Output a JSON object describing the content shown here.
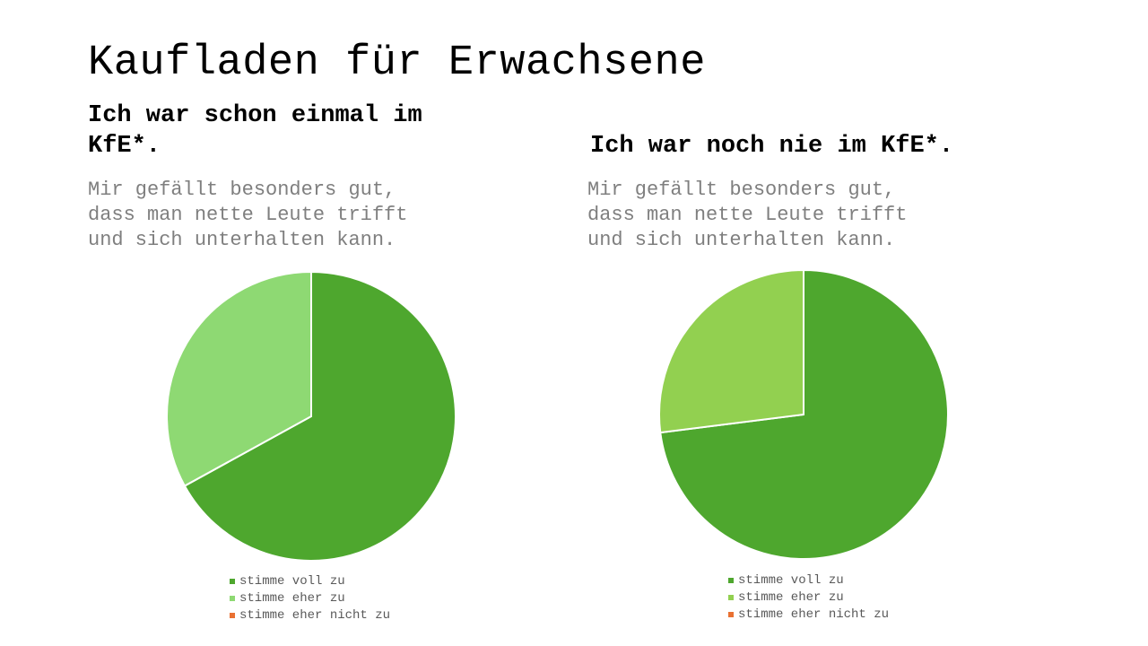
{
  "slide": {
    "title": "Kaufladen für Erwachsene"
  },
  "panels": [
    {
      "heading_line1": "Ich war schon einmal im",
      "heading_line2": "KfE*.",
      "question": "Mir gefällt besonders gut,\ndass man nette Leute trifft\nund sich unterhalten kann."
    },
    {
      "heading_line1": "Ich war noch nie im KfE*.",
      "heading_line2": "",
      "question": "Mir gefällt besonders gut,\ndass man nette Leute trifft\nund sich unterhalten kann."
    }
  ],
  "chart_data": [
    {
      "type": "pie",
      "title": "",
      "categories": [
        "stimme voll zu",
        "stimme eher zu",
        "stimme eher nicht zu"
      ],
      "values": [
        67,
        33,
        0
      ],
      "colors": [
        "#4ea72e",
        "#8ed973",
        "#e97132"
      ],
      "legend_position": "bottom"
    },
    {
      "type": "pie",
      "title": "",
      "categories": [
        "stimme voll zu",
        "stimme eher zu",
        "stimme eher nicht zu"
      ],
      "values": [
        73,
        27,
        0
      ],
      "colors": [
        "#4ea72e",
        "#92d050",
        "#e97132"
      ],
      "legend_position": "bottom"
    }
  ]
}
